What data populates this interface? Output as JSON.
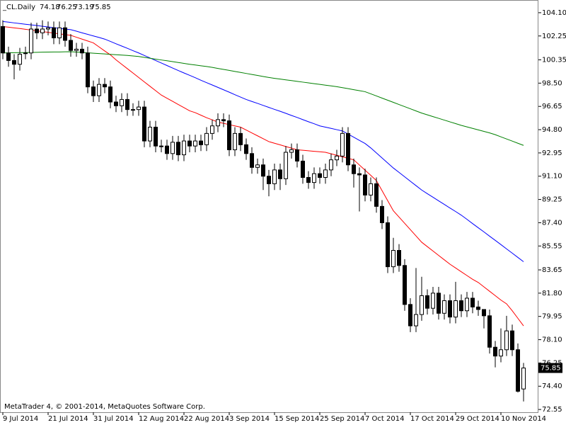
{
  "chart_data": {
    "type": "candlestick",
    "title": "_CL.Daily",
    "footer": "MetaTrader 4, © 2001-2014, MetaQuotes Software Corp.",
    "bull_color": "#ffffff",
    "bear_color": "#000000",
    "categories": [
      "9 Jul 2014",
      null,
      null,
      null,
      null,
      null,
      null,
      null,
      "21 Jul 2014",
      null,
      null,
      null,
      null,
      null,
      null,
      null,
      "31 Jul 2014",
      null,
      null,
      null,
      null,
      null,
      null,
      null,
      "12 Aug 2014",
      null,
      null,
      null,
      null,
      null,
      null,
      null,
      "22 Aug 2014",
      null,
      null,
      null,
      null,
      null,
      null,
      null,
      "3 Sep 2014",
      null,
      null,
      null,
      null,
      null,
      null,
      null,
      "15 Sep 2014",
      null,
      null,
      null,
      null,
      null,
      null,
      null,
      "25 Sep 2014",
      null,
      null,
      null,
      null,
      null,
      null,
      null,
      "7 Oct 2014",
      null,
      null,
      null,
      null,
      null,
      null,
      null,
      "17 Oct 2014",
      null,
      null,
      null,
      null,
      null,
      null,
      null,
      "29 Oct 2014",
      null,
      null,
      null,
      null,
      null,
      null,
      null,
      "10 Nov 2014",
      null,
      null,
      null,
      null
    ],
    "open": [
      103.0,
      100.9,
      100.3,
      100.0,
      100.9,
      100.9,
      102.8,
      102.5,
      102.8,
      102.9,
      102.1,
      102.9,
      101.9,
      101.1,
      101.2,
      100.9,
      98.2,
      97.5,
      98.4,
      98.2,
      97.0,
      96.7,
      97.2,
      96.4,
      96.4,
      96.6,
      93.9,
      95.0,
      93.5,
      93.5,
      92.9,
      93.8,
      92.8,
      93.9,
      93.5,
      93.9,
      93.6,
      94.5,
      95.1,
      95.6,
      95.5,
      93.2,
      94.5,
      93.6,
      92.9,
      91.8,
      92.0,
      91.1,
      90.5,
      91.6,
      90.9,
      93.0,
      93.2,
      92.3,
      91.0,
      90.6,
      91.3,
      91.0,
      91.6,
      92.4,
      92.7,
      94.5,
      92.0,
      91.3,
      91.2,
      89.6,
      90.5,
      88.7,
      87.4,
      83.9,
      85.2,
      84.0,
      80.9,
      79.2,
      80.1,
      81.6,
      80.6,
      81.8,
      80.2,
      81.2,
      79.9,
      81.2,
      80.4,
      81.4,
      80.7,
      80.5,
      80.0,
      77.5,
      76.8,
      77.3,
      78.8,
      77.3,
      74.18
    ],
    "high": [
      103.5,
      101.4,
      100.8,
      101.3,
      101.4,
      103.3,
      103.3,
      103.5,
      103.4,
      103.4,
      103.4,
      103.4,
      102.4,
      101.7,
      101.7,
      101.4,
      98.7,
      98.9,
      98.9,
      98.7,
      97.5,
      97.7,
      97.7,
      96.9,
      97.1,
      97.1,
      95.5,
      95.5,
      94.0,
      94.0,
      94.3,
      94.3,
      94.4,
      94.4,
      94.4,
      94.4,
      95.0,
      95.6,
      96.1,
      96.1,
      96.0,
      95.0,
      95.0,
      94.1,
      93.4,
      92.5,
      92.5,
      91.6,
      92.1,
      92.1,
      93.5,
      93.7,
      93.7,
      92.8,
      91.5,
      91.8,
      91.8,
      92.1,
      92.9,
      93.2,
      95.0,
      95.0,
      92.5,
      91.8,
      91.7,
      91.0,
      91.0,
      89.2,
      87.9,
      86.2,
      85.7,
      84.5,
      81.4,
      83.8,
      83.1,
      82.1,
      82.3,
      82.3,
      81.7,
      81.7,
      82.7,
      81.7,
      81.9,
      81.9,
      81.2,
      80.5,
      80.5,
      78.0,
      79.0,
      80.0,
      79.3,
      77.8,
      76.25
    ],
    "low": [
      100.4,
      99.8,
      98.8,
      99.5,
      100.4,
      100.4,
      102.0,
      102.0,
      102.3,
      101.6,
      101.6,
      101.4,
      100.6,
      100.6,
      100.4,
      97.7,
      97.0,
      97.0,
      97.7,
      96.5,
      96.2,
      96.2,
      95.9,
      95.9,
      95.9,
      93.4,
      93.4,
      93.0,
      93.0,
      92.4,
      92.4,
      92.3,
      92.3,
      93.0,
      93.0,
      93.1,
      93.1,
      94.0,
      94.6,
      95.0,
      92.7,
      92.7,
      93.1,
      92.4,
      91.3,
      91.3,
      90.0,
      89.5,
      90.0,
      90.0,
      90.4,
      92.5,
      91.8,
      90.5,
      90.1,
      90.1,
      90.5,
      90.5,
      91.1,
      91.9,
      92.2,
      91.5,
      90.2,
      88.3,
      89.1,
      89.1,
      88.2,
      86.9,
      83.4,
      83.4,
      83.5,
      80.4,
      78.7,
      78.7,
      79.6,
      80.1,
      80.1,
      79.7,
      79.7,
      79.4,
      79.4,
      79.9,
      79.9,
      80.2,
      80.0,
      79.0,
      77.0,
      75.9,
      76.3,
      76.8,
      76.8,
      73.9,
      73.19
    ],
    "close": [
      100.9,
      100.3,
      100.0,
      100.8,
      100.9,
      102.8,
      102.5,
      102.8,
      102.9,
      102.1,
      102.9,
      101.9,
      101.1,
      101.2,
      100.9,
      98.2,
      97.5,
      98.4,
      98.2,
      97.0,
      96.7,
      97.2,
      96.4,
      96.4,
      96.6,
      93.9,
      95.0,
      93.5,
      93.5,
      92.9,
      93.8,
      92.8,
      93.9,
      93.5,
      93.9,
      93.6,
      94.5,
      95.1,
      95.6,
      95.5,
      93.2,
      94.5,
      93.6,
      92.9,
      91.8,
      92.0,
      91.1,
      90.5,
      91.6,
      90.9,
      93.0,
      93.2,
      92.3,
      91.0,
      90.6,
      91.3,
      91.0,
      91.6,
      92.4,
      92.7,
      94.5,
      92.0,
      91.3,
      91.2,
      89.6,
      90.5,
      88.7,
      87.4,
      83.9,
      85.2,
      84.0,
      80.9,
      79.2,
      80.1,
      81.6,
      80.6,
      81.8,
      80.2,
      81.2,
      79.9,
      81.2,
      80.4,
      81.4,
      80.7,
      80.5,
      80.0,
      77.5,
      76.8,
      77.3,
      78.8,
      77.3,
      74.0,
      75.85
    ],
    "lines": [
      {
        "color": "#0000ff",
        "values": [
          103.4,
          103.35,
          103.29,
          103.24,
          103.18,
          103.13,
          103.08,
          103.02,
          102.97,
          102.91,
          102.86,
          102.8,
          102.75,
          102.63,
          102.5,
          102.38,
          102.25,
          102.13,
          102.0,
          101.82,
          101.63,
          101.45,
          101.27,
          101.08,
          100.9,
          100.7,
          100.5,
          100.3,
          100.1,
          99.9,
          99.7,
          99.5,
          99.31,
          99.12,
          98.93,
          98.73,
          98.54,
          98.35,
          98.16,
          97.97,
          97.78,
          97.58,
          97.39,
          97.2,
          97.04,
          96.89,
          96.73,
          96.57,
          96.41,
          96.26,
          96.1,
          95.93,
          95.77,
          95.6,
          95.43,
          95.27,
          95.1,
          95.0,
          94.9,
          94.8,
          94.7,
          94.45,
          94.2,
          93.95,
          93.7,
          93.35,
          92.95,
          92.55,
          92.15,
          91.75,
          91.4,
          91.05,
          90.7,
          90.35,
          90.0,
          89.71,
          89.43,
          89.14,
          88.86,
          88.57,
          88.29,
          88.0,
          87.67,
          87.33,
          87.0,
          86.67,
          86.33,
          86.0,
          85.66,
          85.32,
          84.98,
          84.64,
          84.3
        ]
      },
      {
        "color": "#ff0000",
        "values": [
          103.0,
          102.95,
          102.89,
          102.84,
          102.78,
          102.72,
          102.66,
          102.6,
          102.54,
          102.48,
          102.42,
          102.36,
          102.3,
          102.15,
          102.0,
          101.85,
          101.7,
          101.38,
          101.06,
          100.75,
          100.35,
          100.0,
          99.65,
          99.3,
          98.95,
          98.6,
          98.25,
          97.9,
          97.55,
          97.3,
          97.05,
          96.8,
          96.55,
          96.3,
          96.15,
          95.95,
          95.75,
          95.58,
          95.4,
          95.3,
          95.2,
          95.1,
          95.0,
          94.77,
          94.54,
          94.31,
          94.08,
          93.85,
          93.72,
          93.59,
          93.46,
          93.33,
          93.2,
          93.16,
          93.12,
          93.08,
          93.04,
          93.0,
          92.88,
          92.76,
          92.64,
          92.52,
          92.4,
          91.99,
          91.58,
          91.17,
          90.75,
          89.95,
          89.15,
          88.35,
          87.85,
          87.35,
          86.85,
          86.35,
          85.85,
          85.5,
          85.15,
          84.8,
          84.45,
          84.1,
          83.8,
          83.5,
          83.2,
          82.9,
          82.65,
          82.3,
          81.95,
          81.6,
          81.25,
          80.95,
          80.4,
          79.8,
          79.2
        ]
      },
      {
        "color": "#008000",
        "values": [
          100.9,
          100.91,
          100.92,
          100.93,
          100.93,
          100.94,
          100.95,
          100.96,
          100.97,
          100.98,
          100.98,
          100.99,
          101.0,
          100.97,
          100.94,
          100.91,
          100.88,
          100.85,
          100.82,
          100.79,
          100.76,
          100.73,
          100.7,
          100.66,
          100.62,
          100.55,
          100.48,
          100.41,
          100.34,
          100.28,
          100.21,
          100.14,
          100.07,
          100.0,
          99.94,
          99.88,
          99.82,
          99.75,
          99.67,
          99.59,
          99.51,
          99.43,
          99.35,
          99.27,
          99.19,
          99.11,
          99.03,
          98.95,
          98.88,
          98.82,
          98.76,
          98.7,
          98.64,
          98.58,
          98.52,
          98.46,
          98.4,
          98.34,
          98.28,
          98.22,
          98.14,
          98.06,
          97.98,
          97.9,
          97.82,
          97.65,
          97.48,
          97.31,
          97.14,
          96.97,
          96.8,
          96.63,
          96.46,
          96.29,
          96.12,
          95.98,
          95.84,
          95.7,
          95.56,
          95.42,
          95.28,
          95.14,
          95.02,
          94.9,
          94.78,
          94.66,
          94.54,
          94.4,
          94.23,
          94.06,
          93.89,
          93.72,
          93.55
        ]
      }
    ],
    "ylim": [
      72.33,
      105.11
    ],
    "yticks": [
      {
        "value": 104.1,
        "label": "104.10"
      },
      102.25,
      100.35,
      {
        "value": 98.5,
        "label": "98.50"
      },
      96.65,
      {
        "value": 94.8,
        "label": "94.80"
      },
      92.95,
      {
        "value": 91.1,
        "label": "91.10"
      },
      89.25,
      {
        "value": 87.4,
        "label": "87.40"
      },
      85.55,
      83.65,
      {
        "value": 81.8,
        "label": "81.80"
      },
      79.95,
      {
        "value": 78.1,
        "label": "78.10"
      },
      76.25,
      {
        "value": 74.4,
        "label": "74.40"
      },
      72.55
    ]
  }
}
